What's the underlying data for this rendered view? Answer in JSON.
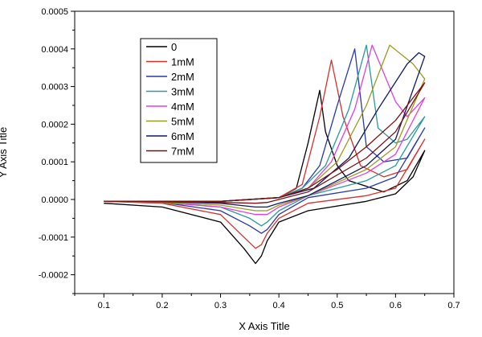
{
  "chart_data": {
    "type": "line",
    "xlabel": "X Axis Title",
    "ylabel": "Y Axis Title",
    "xlim": [
      0.05,
      0.7
    ],
    "ylim": [
      -0.00025,
      0.0005
    ],
    "xticks": [
      0.1,
      0.2,
      0.3,
      0.4,
      0.5,
      0.6,
      0.7
    ],
    "xtick_labels": [
      "0.1",
      "0.2",
      "0.3",
      "0.4",
      "0.5",
      "0.6",
      "0.7"
    ],
    "yticks": [
      -0.0002,
      -0.0001,
      0,
      0.0001,
      0.0002,
      0.0003,
      0.0004,
      0.0005
    ],
    "ytick_labels": [
      "-0.0002",
      "-0.0001",
      "0.0000",
      "0.0001",
      "0.0002",
      "0.0003",
      "0.0004",
      "0.0005"
    ],
    "grid": false,
    "legend_position": "top-left",
    "series": [
      {
        "name": "0",
        "color": "#000000",
        "x": [
          0.1,
          0.2,
          0.3,
          0.34,
          0.36,
          0.37,
          0.38,
          0.4,
          0.45,
          0.55,
          0.6,
          0.63,
          0.65,
          0.65,
          0.62,
          0.58,
          0.52,
          0.5,
          0.48,
          0.47,
          0.45,
          0.43,
          0.4,
          0.3,
          0.2,
          0.1
        ],
        "y": [
          -1e-05,
          -2e-05,
          -6e-05,
          -0.00013,
          -0.00017,
          -0.00015,
          -0.00011,
          -6e-05,
          -3e-05,
          -5e-06,
          1.5e-05,
          6e-05,
          0.00013,
          0.00013,
          5e-05,
          2e-05,
          5e-05,
          9e-05,
          0.00018,
          0.00029,
          0.00015,
          3e-05,
          5e-06,
          -5e-06,
          -5e-06,
          -5e-06
        ]
      },
      {
        "name": "1mM",
        "color": "#d92f2f",
        "x": [
          0.1,
          0.2,
          0.3,
          0.34,
          0.36,
          0.37,
          0.38,
          0.4,
          0.45,
          0.55,
          0.6,
          0.65,
          0.65,
          0.62,
          0.58,
          0.54,
          0.51,
          0.49,
          0.47,
          0.44,
          0.4,
          0.3,
          0.2,
          0.1
        ],
        "y": [
          -5e-06,
          -1e-05,
          -4e-05,
          -0.0001,
          -0.00013,
          -0.00012,
          -9e-05,
          -5e-05,
          -1e-05,
          1e-05,
          3e-05,
          0.00016,
          0.00016,
          8e-05,
          6e-05,
          9e-05,
          0.00022,
          0.00037,
          0.00022,
          4e-05,
          5e-06,
          -5e-06,
          -5e-06,
          -5e-06
        ]
      },
      {
        "name": "2mM",
        "color": "#2a3aa8",
        "x": [
          0.1,
          0.2,
          0.3,
          0.35,
          0.37,
          0.38,
          0.4,
          0.45,
          0.55,
          0.6,
          0.65,
          0.65,
          0.62,
          0.58,
          0.55,
          0.53,
          0.5,
          0.47,
          0.44,
          0.4,
          0.3,
          0.2,
          0.1
        ],
        "y": [
          -5e-06,
          -8e-06,
          -3e-05,
          -7e-05,
          -9e-05,
          -8e-05,
          -4e-05,
          5e-06,
          3e-05,
          6e-05,
          0.00019,
          0.00019,
          0.00011,
          0.0001,
          0.00014,
          0.0004,
          0.00025,
          9e-05,
          3e-05,
          5e-06,
          -5e-06,
          -5e-06,
          -5e-06
        ]
      },
      {
        "name": "3mM",
        "color": "#2a9a9a",
        "x": [
          0.1,
          0.2,
          0.3,
          0.35,
          0.37,
          0.38,
          0.4,
          0.45,
          0.55,
          0.6,
          0.65,
          0.65,
          0.62,
          0.6,
          0.57,
          0.55,
          0.52,
          0.48,
          0.44,
          0.4,
          0.3,
          0.2,
          0.1
        ],
        "y": [
          -5e-06,
          -8e-06,
          -2e-05,
          -5e-05,
          -7e-05,
          -6e-05,
          -3e-05,
          1e-05,
          5e-05,
          9e-05,
          0.00022,
          0.00022,
          0.00016,
          0.00015,
          0.00019,
          0.00041,
          0.00024,
          9e-05,
          3e-05,
          5e-06,
          -5e-06,
          -5e-06,
          -5e-06
        ]
      },
      {
        "name": "4mM",
        "color": "#e040e0",
        "x": [
          0.1,
          0.2,
          0.3,
          0.36,
          0.38,
          0.4,
          0.45,
          0.55,
          0.6,
          0.65,
          0.65,
          0.62,
          0.6,
          0.56,
          0.53,
          0.49,
          0.45,
          0.4,
          0.3,
          0.2,
          0.1
        ],
        "y": [
          -5e-06,
          -8e-06,
          -2e-05,
          -4e-05,
          -4e-05,
          -2e-05,
          1e-05,
          7e-05,
          0.00012,
          0.00027,
          0.00027,
          0.00022,
          0.00026,
          0.00041,
          0.00024,
          0.0001,
          3e-05,
          5e-06,
          -5e-06,
          -5e-06,
          -5e-06
        ]
      },
      {
        "name": "5mM",
        "color": "#9a9a22",
        "x": [
          0.1,
          0.2,
          0.3,
          0.36,
          0.38,
          0.4,
          0.45,
          0.55,
          0.6,
          0.65,
          0.65,
          0.63,
          0.59,
          0.55,
          0.5,
          0.45,
          0.4,
          0.3,
          0.2,
          0.1
        ],
        "y": [
          -5e-06,
          -8e-06,
          -1.5e-05,
          -3e-05,
          -3e-05,
          -1.5e-05,
          1e-05,
          8e-05,
          0.00014,
          0.00032,
          0.00032,
          0.00036,
          0.00041,
          0.00025,
          0.0001,
          3e-05,
          5e-06,
          -5e-06,
          -5e-06,
          -5e-06
        ]
      },
      {
        "name": "6mM",
        "color": "#101a60",
        "x": [
          0.1,
          0.2,
          0.3,
          0.36,
          0.38,
          0.4,
          0.45,
          0.55,
          0.6,
          0.65,
          0.65,
          0.64,
          0.62,
          0.57,
          0.52,
          0.46,
          0.4,
          0.3,
          0.2,
          0.1
        ],
        "y": [
          -5e-06,
          -6e-06,
          -1e-05,
          -2e-05,
          -2e-05,
          -1e-05,
          1e-05,
          9e-05,
          0.00016,
          0.00038,
          0.00038,
          0.00039,
          0.00036,
          0.00024,
          0.00011,
          3e-05,
          5e-06,
          -5e-06,
          -5e-06,
          -5e-06
        ]
      },
      {
        "name": "7mM",
        "color": "#7a1010",
        "x": [
          0.1,
          0.2,
          0.3,
          0.36,
          0.38,
          0.4,
          0.45,
          0.55,
          0.6,
          0.65,
          0.65,
          0.6,
          0.55,
          0.5,
          0.45,
          0.4,
          0.3,
          0.2,
          0.1
        ],
        "y": [
          -5e-06,
          -5e-06,
          -8e-06,
          -1e-05,
          -8e-06,
          0.0,
          2e-05,
          0.00011,
          0.00018,
          0.00031,
          0.00031,
          0.00021,
          0.00014,
          8e-05,
          3e-05,
          5e-06,
          -5e-06,
          -5e-06,
          -5e-06
        ]
      }
    ]
  }
}
